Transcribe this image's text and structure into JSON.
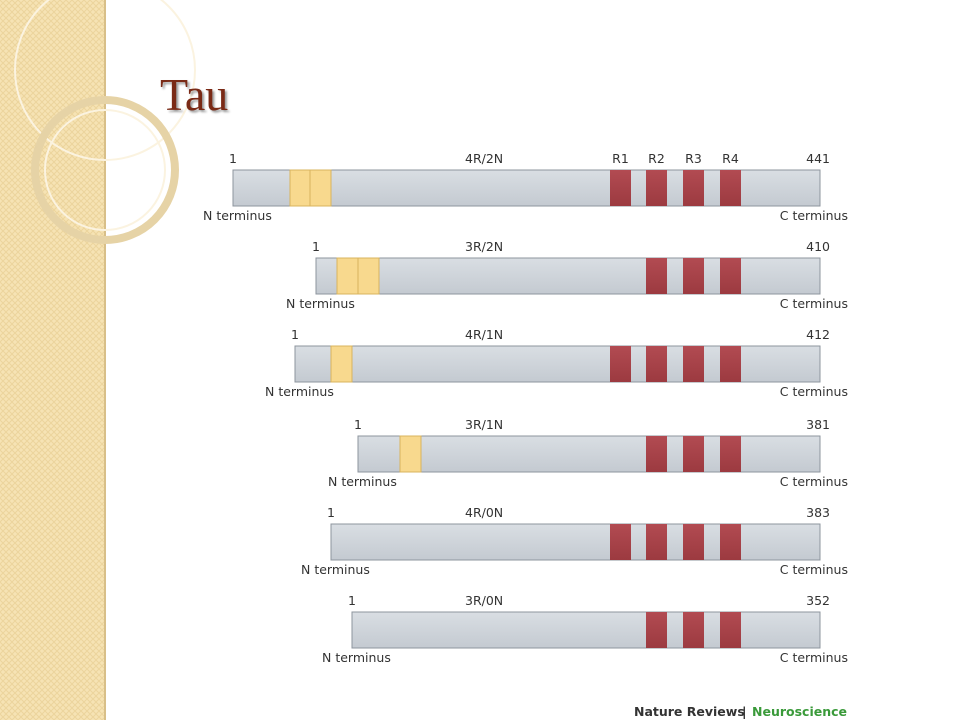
{
  "title": "Tau",
  "repeat_labels": [
    "R1",
    "R2",
    "R3",
    "R4"
  ],
  "isoforms": [
    {
      "name": "4R/2N",
      "start_label": "1",
      "end_label": "441",
      "n_label": "N terminus",
      "c_label": "C terminus"
    },
    {
      "name": "3R/2N",
      "start_label": "1",
      "end_label": "410",
      "n_label": "N terminus",
      "c_label": "C terminus"
    },
    {
      "name": "4R/1N",
      "start_label": "1",
      "end_label": "412",
      "n_label": "N terminus",
      "c_label": "C terminus"
    },
    {
      "name": "3R/1N",
      "start_label": "1",
      "end_label": "381",
      "n_label": "N terminus",
      "c_label": "C terminus"
    },
    {
      "name": "4R/0N",
      "start_label": "1",
      "end_label": "383",
      "n_label": "N terminus",
      "c_label": "C terminus"
    },
    {
      "name": "3R/0N",
      "start_label": "1",
      "end_label": "352",
      "n_label": "N terminus",
      "c_label": "C terminus"
    }
  ],
  "source": {
    "journal": "Nature Reviews",
    "separator": "|",
    "field": "Neuroscience"
  }
}
